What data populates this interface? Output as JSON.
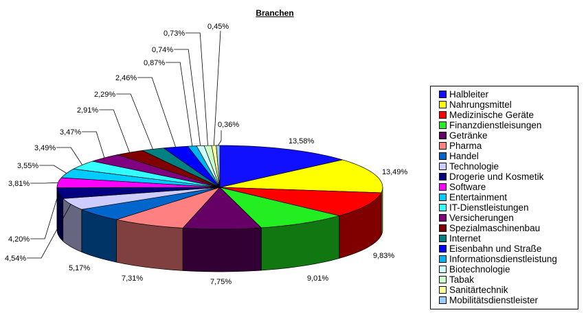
{
  "chart_data": {
    "type": "pie",
    "style": "3d",
    "title": "Branchen",
    "legend_position": "right",
    "start": "top, clockwise",
    "categories": [
      "Halbleiter",
      "Nahrungsmittel",
      "Medizinische Geräte",
      "Finanzdienstleisungen",
      "Getränke",
      "Pharma",
      "Handel",
      "Technologie",
      "Drogerie und Kosmetik",
      "Software",
      "Entertainment",
      "IT-Dienstleistungen",
      "Versicherungen",
      "Spezialmaschinenbau",
      "Internet",
      "Eisenbahn und Straße",
      "Informationsdienstleistung",
      "Biotechnologie",
      "Tabak",
      "Sanitärtechnik",
      "Mobilitätsdienstleister"
    ],
    "values": [
      13.58,
      13.49,
      9.83,
      9.01,
      7.75,
      7.31,
      5.17,
      4.54,
      4.2,
      3.81,
      3.55,
      3.49,
      3.47,
      2.91,
      2.29,
      2.46,
      0.87,
      0.74,
      0.73,
      0.45,
      0.36
    ],
    "labels": [
      "13,58%",
      "13,49%",
      "9,83%",
      "9,01%",
      "7,75%",
      "7,31%",
      "5,17%",
      "4,54%",
      "4,20%",
      "3,81%",
      "3,55%",
      "3,49%",
      "3,47%",
      "2,91%",
      "2,29%",
      "2,46%",
      "0,87%",
      "0,74%",
      "0,73%",
      "0,45%",
      "0,36%"
    ],
    "colors": [
      "#1010ff",
      "#ffff00",
      "#ff0000",
      "#22ee22",
      "#660066",
      "#ff8080",
      "#0066cc",
      "#ccccff",
      "#000080",
      "#ff00ff",
      "#00ccff",
      "#33ffff",
      "#800080",
      "#800000",
      "#008080",
      "#0000ff",
      "#00b4f0",
      "#ccffff",
      "#ccffcc",
      "#ffff99",
      "#99ccff"
    ]
  }
}
